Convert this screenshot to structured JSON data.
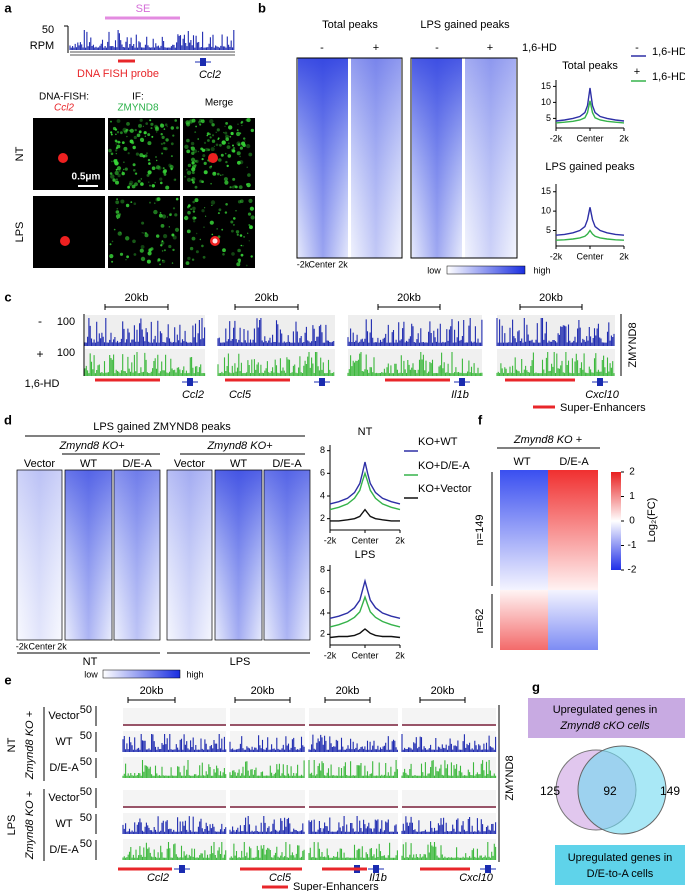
{
  "a": {
    "label": "a",
    "se": "SE",
    "rpm_tick": 50,
    "rpm": "RPM",
    "probe": "DNA FISH probe",
    "gene": "Ccl2",
    "headers": {
      "fish": "DNA-FISH:",
      "fish_target": "Ccl2",
      "if": "IF:",
      "if_target": "ZMYND8",
      "merge": "Merge"
    },
    "rows": [
      "NT",
      "LPS"
    ],
    "scale_bar": "0.5μm"
  },
  "b": {
    "label": "b",
    "total_label": "Total peaks",
    "lps_label": "LPS gained peaks",
    "conditions": [
      "-",
      "+",
      "-",
      "+"
    ],
    "treatment": "1,6-HD",
    "heatmap_xticks": [
      "-2k",
      "Center",
      "2k"
    ],
    "colorbar": [
      "low",
      "high"
    ],
    "profiles": [
      {
        "type": "line",
        "title": "Total peaks",
        "x": [
          -2000,
          -1500,
          -1000,
          -600,
          -300,
          -150,
          0,
          150,
          300,
          600,
          1000,
          1500,
          2000
        ],
        "xlim": [
          -2000,
          2000
        ],
        "xticks": [
          {
            "value": -2000,
            "label": "-2k"
          },
          {
            "value": 0,
            "label": "Center"
          },
          {
            "value": 2000,
            "label": "2k"
          }
        ],
        "ylim": [
          2,
          17
        ],
        "yticks": [
          5,
          10,
          15
        ],
        "series": [
          {
            "name": "-",
            "color": "#2d2fa6",
            "values": [
              4.2,
              4.5,
              5,
              5.6,
              6.8,
              9,
              14.5,
              9,
              6.8,
              5.6,
              5,
              4.5,
              4.2
            ]
          },
          {
            "name": "+",
            "color": "#35b24a",
            "values": [
              3.6,
              3.8,
              4.1,
              4.5,
              5.2,
              6.8,
              10.5,
              6.8,
              5.2,
              4.5,
              4.1,
              3.8,
              3.6
            ]
          }
        ]
      },
      {
        "type": "line",
        "title": "LPS gained peaks",
        "x": [
          -2000,
          -1500,
          -1000,
          -600,
          -300,
          -150,
          0,
          150,
          300,
          600,
          1000,
          1500,
          2000
        ],
        "xlim": [
          -2000,
          2000
        ],
        "xticks": [
          {
            "value": -2000,
            "label": "-2k"
          },
          {
            "value": 0,
            "label": "Center"
          },
          {
            "value": 2000,
            "label": "2k"
          }
        ],
        "ylim": [
          1,
          17
        ],
        "yticks": [
          5,
          10,
          15
        ],
        "series": [
          {
            "name": "-",
            "color": "#2d2fa6",
            "values": [
              3.8,
              4,
              4.4,
              5,
              6,
              7.8,
              11,
              7.8,
              6,
              5,
              4.4,
              4,
              3.8
            ]
          },
          {
            "name": "+",
            "color": "#35b24a",
            "values": [
              2.5,
              2.6,
              2.8,
              3.1,
              3.5,
              4.1,
              5,
              4.1,
              3.5,
              3.1,
              2.8,
              2.6,
              2.5
            ]
          }
        ]
      }
    ]
  },
  "c": {
    "label": "c",
    "conditions": [
      "-",
      "+"
    ],
    "track_max": 100,
    "scale": "20kb",
    "genes": [
      "Ccl2",
      "Ccl5",
      "Il1b",
      "Cxcl10"
    ],
    "treatment": "1,6-HD",
    "factor": "ZMYND8",
    "legend": "Super-Enhancers"
  },
  "d": {
    "label": "d",
    "title": "LPS gained ZMYND8 peaks",
    "group": "Zmynd8 KO+",
    "columns": [
      "Vector",
      "WT",
      "D/E-A"
    ],
    "heatmap_xticks": [
      "-2k",
      "Center",
      "2k"
    ],
    "conditions": [
      "NT",
      "LPS"
    ],
    "colorbar": [
      "low",
      "high"
    ],
    "profiles": [
      {
        "type": "line",
        "title": "NT",
        "x": [
          -2000,
          -1500,
          -1000,
          -600,
          -300,
          -150,
          0,
          150,
          300,
          600,
          1000,
          1500,
          2000
        ],
        "xlim": [
          -2000,
          2000
        ],
        "xticks": [
          {
            "value": -2000,
            "label": "-2k"
          },
          {
            "value": 0,
            "label": "Center"
          },
          {
            "value": 2000,
            "label": "2k"
          }
        ],
        "ylim": [
          1,
          8.5
        ],
        "yticks": [
          2,
          4,
          6,
          8
        ],
        "series": [
          {
            "name": "KO+WT",
            "color": "#2d2fa6",
            "values": [
              3.3,
              3.5,
              3.8,
              4.3,
              5.1,
              6,
              7,
              6,
              5.1,
              4.3,
              3.8,
              3.5,
              3.3
            ]
          },
          {
            "name": "KO+D/E-A",
            "color": "#35b24a",
            "values": [
              2.8,
              3,
              3.3,
              3.8,
              4.5,
              5.3,
              6,
              5.3,
              4.5,
              3.8,
              3.3,
              3,
              2.8
            ]
          },
          {
            "name": "KO+Vector",
            "color": "#111111",
            "values": [
              1.8,
              1.8,
              1.9,
              2,
              2.2,
              2.5,
              2.8,
              2.5,
              2.2,
              2,
              1.9,
              1.8,
              1.8
            ]
          }
        ]
      },
      {
        "type": "line",
        "title": "LPS",
        "x": [
          -2000,
          -1500,
          -1000,
          -600,
          -300,
          -150,
          0,
          150,
          300,
          600,
          1000,
          1500,
          2000
        ],
        "xlim": [
          -2000,
          2000
        ],
        "xticks": [
          {
            "value": -2000,
            "label": "-2k"
          },
          {
            "value": 0,
            "label": "Center"
          },
          {
            "value": 2000,
            "label": "2k"
          }
        ],
        "ylim": [
          1,
          8.5
        ],
        "yticks": [
          2,
          4,
          6,
          8
        ],
        "series": [
          {
            "name": "KO+WT",
            "color": "#2d2fa6",
            "values": [
              3.5,
              3.7,
              4,
              4.5,
              5.2,
              6.1,
              7,
              6.1,
              5.2,
              4.5,
              4,
              3.7,
              3.5
            ]
          },
          {
            "name": "KO+D/E-A",
            "color": "#35b24a",
            "values": [
              2.7,
              2.9,
              3.2,
              3.6,
              4.1,
              4.8,
              5.5,
              4.8,
              4.1,
              3.6,
              3.2,
              2.9,
              2.7
            ]
          },
          {
            "name": "KO+Vector",
            "color": "#111111",
            "values": [
              1.7,
              1.8,
              1.8,
              1.9,
              2.1,
              2.3,
              2.5,
              2.3,
              2.1,
              1.9,
              1.8,
              1.8,
              1.7
            ]
          }
        ]
      }
    ]
  },
  "e": {
    "label": "e",
    "scale": "20kb",
    "conditions": [
      "NT",
      "LPS"
    ],
    "group": "Zmynd8 KO +",
    "rows": [
      "Vector",
      "WT",
      "D/E-A"
    ],
    "track_max": 50,
    "genes": [
      "Ccl2",
      "Ccl5",
      "Il1b",
      "Cxcl10"
    ],
    "legend": "Super-Enhancers",
    "factor": "ZMYND8"
  },
  "f": {
    "label": "f",
    "group": "Zmynd8 KO +",
    "columns": [
      "WT",
      "D/E-A"
    ],
    "clusters": [
      "n=149",
      "n=62"
    ],
    "colorbar": {
      "ylim": [
        -2,
        2
      ],
      "yticks": [
        2,
        1,
        0,
        -1,
        -2
      ],
      "label": "Log₂(FC)"
    }
  },
  "g": {
    "label": "g",
    "set_a": [
      "Upregulated genes  in",
      "Zmynd8 cKO cells"
    ],
    "set_b": [
      "Upregulated genes in",
      "D/E-to-A cells"
    ],
    "only_a": 125,
    "both": 92,
    "only_b": 149
  }
}
